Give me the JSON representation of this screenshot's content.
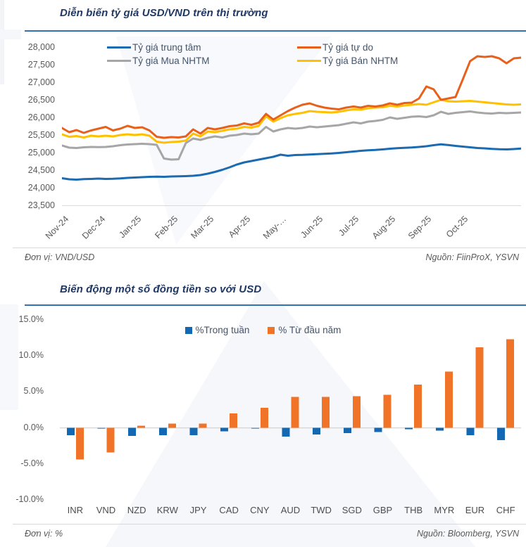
{
  "chart1": {
    "title": "Diễn biến tỷ giá USD/VND trên thị trường",
    "unit_label": "Đơn vị: VND/USD",
    "source_label": "Nguồn: FiinProX, YSVN"
  },
  "chart2": {
    "title": "Biến động một số đồng tiền so với USD",
    "unit_label": "Đơn vị: %",
    "source_label": "Nguồn: Bloomberg, YSVN"
  },
  "colors": {
    "title_navy": "#1F3864",
    "rule_blue": "#2E74B5",
    "axis_text": "#595959",
    "zero_line": "#d6d6d6"
  },
  "chart_data": [
    {
      "type": "line",
      "title": "Diễn biến tỷ giá USD/VND trên thị trường",
      "ylabel": "VND/USD",
      "ylim": [
        23500,
        28000
      ],
      "grid": false,
      "legend_position": "top-inside",
      "y_ticks": [
        "28,000",
        "27,500",
        "27,000",
        "26,500",
        "26,000",
        "25,500",
        "25,000",
        "24,500",
        "24,000",
        "23,500"
      ],
      "x_ticks": [
        "Nov-24",
        "Dec-24",
        "Jan-25",
        "Feb-25",
        "Mar-25",
        "Apr-25",
        "May-…",
        "Jun-25",
        "Jul-25",
        "Aug-25",
        "Sep-25",
        "Oct-25"
      ],
      "series": [
        {
          "name": "Tỷ giá trung tâm",
          "color": "#1C6BB0",
          "values": [
            24290,
            24260,
            24250,
            24265,
            24270,
            24280,
            24270,
            24275,
            24285,
            24300,
            24310,
            24320,
            24330,
            24335,
            24330,
            24340,
            24345,
            24350,
            24360,
            24380,
            24420,
            24470,
            24530,
            24600,
            24680,
            24740,
            24780,
            24820,
            24860,
            24900,
            24960,
            24930,
            24950,
            24955,
            24965,
            24975,
            24985,
            24995,
            25010,
            25030,
            25050,
            25070,
            25085,
            25095,
            25110,
            25130,
            25145,
            25155,
            25165,
            25180,
            25200,
            25230,
            25255,
            25235,
            25210,
            25190,
            25170,
            25150,
            25140,
            25125,
            25115,
            25110,
            25120,
            25135
          ]
        },
        {
          "name": "Tỷ giá tự do",
          "color": "#E8611C",
          "values": [
            25720,
            25600,
            25660,
            25580,
            25650,
            25700,
            25750,
            25650,
            25700,
            25780,
            25720,
            25740,
            25650,
            25470,
            25440,
            25460,
            25450,
            25480,
            25680,
            25560,
            25720,
            25680,
            25720,
            25770,
            25790,
            25850,
            25810,
            25870,
            26120,
            25960,
            26080,
            26200,
            26300,
            26380,
            26420,
            26350,
            26300,
            26270,
            26250,
            26300,
            26330,
            26300,
            26350,
            26330,
            26360,
            26420,
            26380,
            26430,
            26440,
            26560,
            26900,
            26820,
            26520,
            26560,
            26600,
            27100,
            27620,
            27760,
            27740,
            27760,
            27700,
            27560,
            27700,
            27720
          ]
        },
        {
          "name": "Tỷ giá Mua NHTM",
          "color": "#A6A6A6",
          "values": [
            25220,
            25160,
            25150,
            25170,
            25180,
            25175,
            25180,
            25200,
            25230,
            25250,
            25260,
            25270,
            25260,
            25240,
            24850,
            24820,
            24830,
            25290,
            25420,
            25380,
            25440,
            25480,
            25450,
            25500,
            25520,
            25560,
            25540,
            25560,
            25750,
            25620,
            25680,
            25720,
            25700,
            25720,
            25760,
            25740,
            25760,
            25780,
            25800,
            25840,
            25880,
            25850,
            25900,
            25920,
            25950,
            26020,
            25980,
            26010,
            26040,
            26050,
            26030,
            26080,
            26180,
            26120,
            26150,
            26170,
            26190,
            26160,
            26140,
            26130,
            26150,
            26140,
            26150,
            26160
          ]
        },
        {
          "name": "Tỷ giá Bán NHTM",
          "color": "#FFC000",
          "values": [
            25540,
            25470,
            25490,
            25450,
            25500,
            25480,
            25500,
            25480,
            25520,
            25540,
            25520,
            25540,
            25500,
            25330,
            25300,
            25320,
            25330,
            25360,
            25560,
            25480,
            25620,
            25600,
            25640,
            25680,
            25700,
            25750,
            25730,
            25780,
            26050,
            25900,
            26000,
            26080,
            26120,
            26150,
            26200,
            26180,
            26170,
            26160,
            26180,
            26220,
            26250,
            26240,
            26280,
            26300,
            26310,
            26350,
            26330,
            26360,
            26380,
            26400,
            26380,
            26450,
            26520,
            26480,
            26470,
            26480,
            26490,
            26470,
            26450,
            26430,
            26410,
            26390,
            26380,
            26390
          ]
        }
      ]
    },
    {
      "type": "bar",
      "title": "Biến động một số đồng tiền so với USD",
      "ylabel": "%",
      "ylim": [
        -10,
        15
      ],
      "grid": false,
      "legend_position": "top-inside",
      "y_ticks": [
        "15.0%",
        "10.0%",
        "5.0%",
        "0.0%",
        "-5.0%",
        "-10.0%"
      ],
      "categories": [
        "INR",
        "VND",
        "NZD",
        "KRW",
        "JPY",
        "CAD",
        "CNY",
        "AUD",
        "TWD",
        "SGD",
        "GBP",
        "THB",
        "MYR",
        "EUR",
        "CHF"
      ],
      "series": [
        {
          "name": "%Trong tuần",
          "color": "#1268B3",
          "values": [
            -1.0,
            -0.05,
            -1.1,
            -1.0,
            -1.0,
            -0.5,
            -0.05,
            -1.2,
            -0.9,
            -0.7,
            -0.6,
            -0.2,
            -0.4,
            -1.0,
            -1.7
          ]
        },
        {
          "name": "% Từ đầu năm",
          "color": "#F07327",
          "values": [
            -4.4,
            -3.4,
            0.3,
            0.6,
            0.6,
            2.0,
            2.8,
            4.3,
            4.3,
            4.4,
            4.6,
            6.0,
            7.8,
            11.2,
            12.3
          ]
        }
      ]
    }
  ]
}
